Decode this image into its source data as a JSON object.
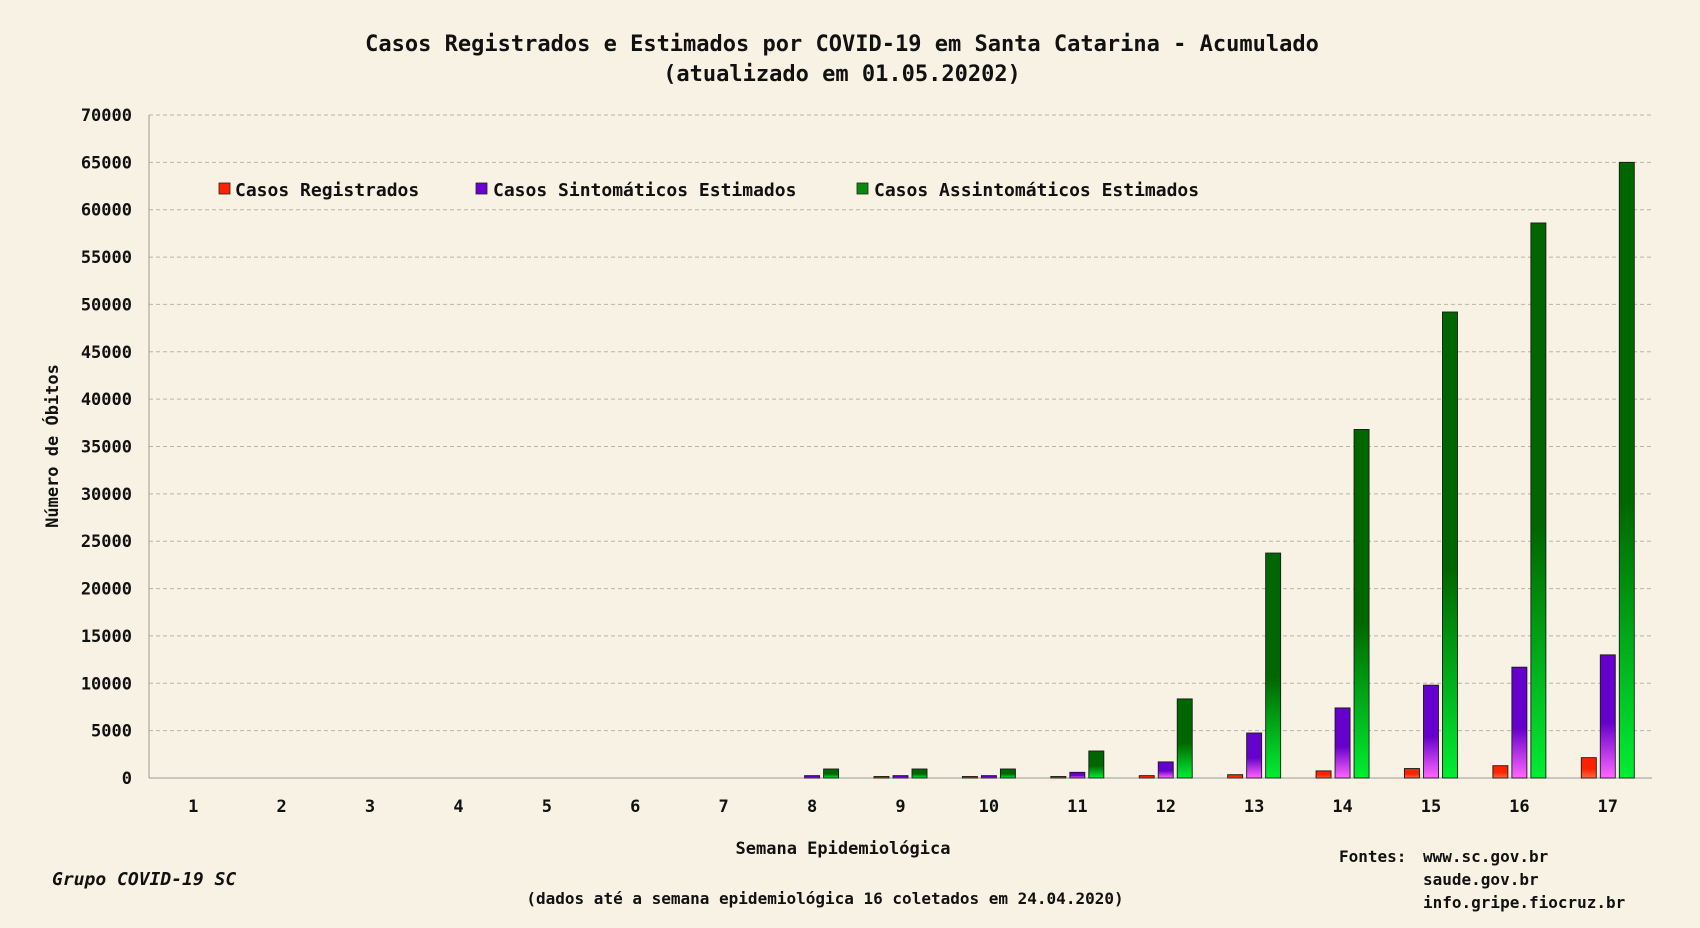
{
  "chart_data": {
    "type": "bar",
    "title": "Casos Registrados e Estimados por COVID-19 em Santa Catarina - Acumulado",
    "subtitle": "(atualizado em 01.05.20202)",
    "xlabel": "Semana Epidemiológica",
    "ylabel": "Número de Óbitos",
    "ylim": [
      0,
      70000
    ],
    "yticks": [
      0,
      5000,
      10000,
      15000,
      20000,
      25000,
      30000,
      35000,
      40000,
      45000,
      50000,
      55000,
      60000,
      65000,
      70000
    ],
    "grid": true,
    "legend_position": "top-left",
    "categories": [
      "1",
      "2",
      "3",
      "4",
      "5",
      "6",
      "7",
      "8",
      "9",
      "10",
      "11",
      "12",
      "13",
      "14",
      "15",
      "16",
      "17"
    ],
    "series": [
      {
        "name": "Casos Registrados",
        "color": "#ff2200",
        "color_light": "#ff6a44",
        "values": [
          0,
          0,
          0,
          0,
          0,
          0,
          0,
          0,
          5,
          40,
          100,
          250,
          350,
          750,
          1000,
          1300,
          2150
        ]
      },
      {
        "name": "Casos Sintomáticos Estimados",
        "color": "#6600cc",
        "color_light": "#ff66ff",
        "values": [
          0,
          0,
          0,
          0,
          0,
          0,
          0,
          250,
          250,
          250,
          600,
          1700,
          4750,
          7400,
          9800,
          11700,
          13000
        ]
      },
      {
        "name": "Casos Assintomáticos Estimados",
        "color": "#006600",
        "color_light": "#00ee33",
        "values": [
          0,
          0,
          0,
          0,
          0,
          0,
          0,
          950,
          950,
          950,
          2850,
          8350,
          23750,
          36800,
          49200,
          58600,
          65000
        ]
      }
    ]
  },
  "footer": {
    "group": "Grupo COVID-19 SC",
    "note": "(dados até a semana epidemiológica 16 coletados em 24.04.2020)",
    "sources_label": "Fontes:",
    "sources": [
      "www.sc.gov.br",
      "saude.gov.br",
      "info.gripe.fiocruz.br"
    ]
  }
}
